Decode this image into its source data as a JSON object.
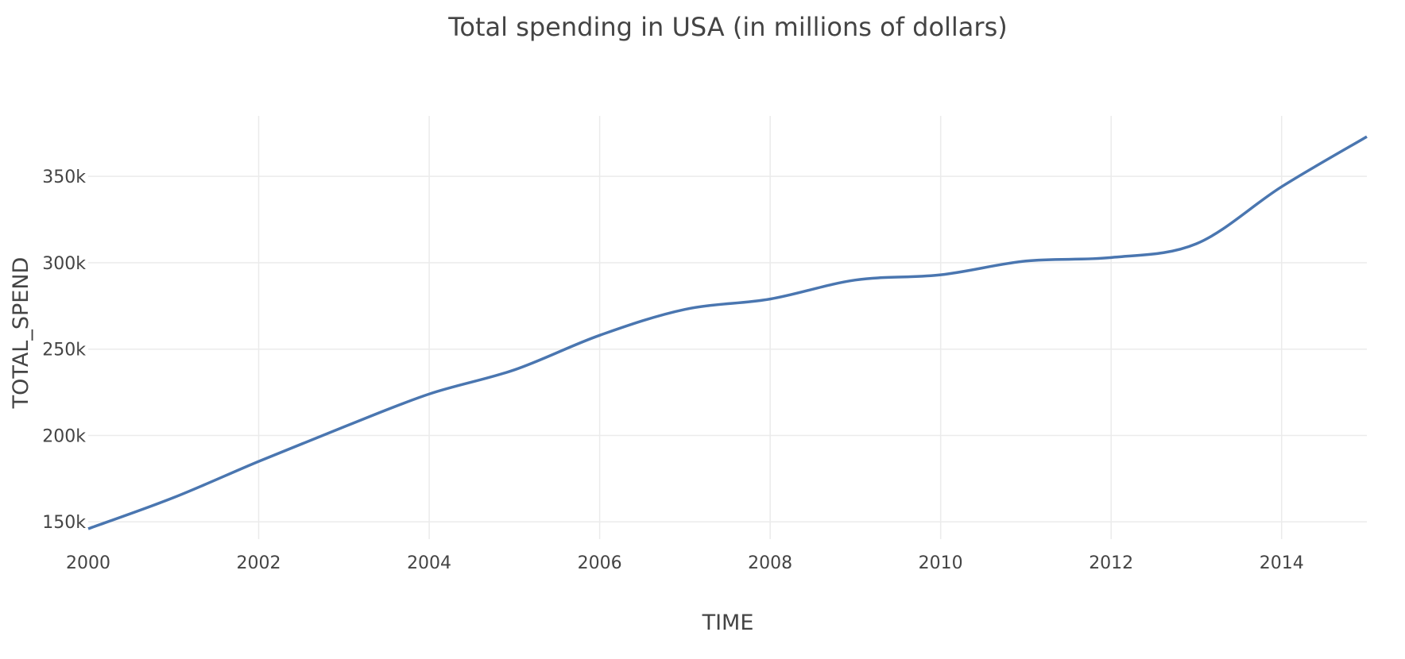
{
  "chart_data": {
    "type": "line",
    "title": "Total spending in USA (in millions of dollars)",
    "xlabel": "TIME",
    "ylabel": "TOTAL_SPEND",
    "xlim": [
      2000,
      2015
    ],
    "ylim": [
      140000,
      385000
    ],
    "x_ticks": [
      2000,
      2002,
      2004,
      2006,
      2008,
      2010,
      2012,
      2014
    ],
    "x_tick_labels": [
      "2000",
      "2002",
      "2004",
      "2006",
      "2008",
      "2010",
      "2012",
      "2014"
    ],
    "y_ticks": [
      150000,
      200000,
      250000,
      300000,
      350000
    ],
    "y_tick_labels": [
      "150k",
      "200k",
      "250k",
      "300k",
      "350k"
    ],
    "grid": true,
    "series": [
      {
        "color": "#4a76b0",
        "x": [
          2000,
          2001,
          2002,
          2003,
          2004,
          2005,
          2006,
          2007,
          2008,
          2009,
          2010,
          2011,
          2012,
          2013,
          2014,
          2015
        ],
        "y": [
          146000,
          164000,
          185000,
          205000,
          224000,
          238000,
          258000,
          273000,
          279000,
          290000,
          293000,
          301000,
          303000,
          311000,
          344000,
          373000
        ]
      }
    ]
  }
}
